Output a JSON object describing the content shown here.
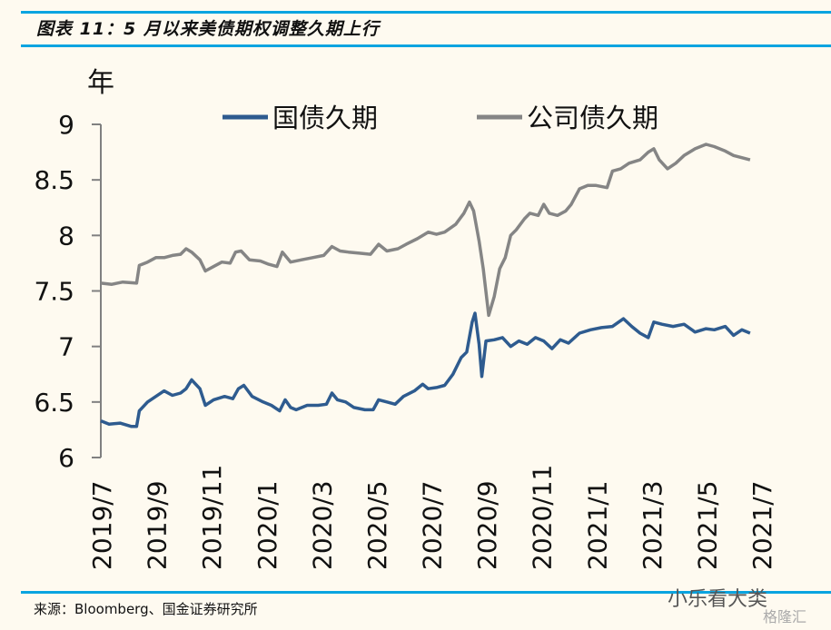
{
  "header": {
    "title": "图表 11：5 月以来美债期权调整久期上行"
  },
  "footer": {
    "source": "来源：Bloomberg、国金证券研究所",
    "watermark": "小乐看大类",
    "watermark2": "格隆汇"
  },
  "chart_data": {
    "type": "line",
    "title": "图表 11：5 月以来美债期权调整久期上行",
    "ylabel": "年",
    "xlabel": "",
    "ylim": [
      6,
      9
    ],
    "yticks": [
      "6",
      "6.5",
      "7",
      "7.5",
      "8",
      "8.5",
      "9"
    ],
    "ytick_values": [
      6,
      6.5,
      7,
      7.5,
      8,
      8.5,
      9
    ],
    "xticks": [
      "2019/7",
      "2019/9",
      "2019/11",
      "2020/1",
      "2020/3",
      "2020/5",
      "2020/7",
      "2020/9",
      "2020/11",
      "2021/1",
      "2021/3",
      "2021/5",
      "2021/7"
    ],
    "x_unit": "months since 2019/7",
    "xlim": [
      0,
      24
    ],
    "grid": false,
    "legend": {
      "position": "top",
      "entries": [
        "国债久期",
        "公司债久期"
      ]
    },
    "series": [
      {
        "name": "国债久期",
        "color": "#2e5b8f",
        "points": [
          [
            0,
            6.33
          ],
          [
            0.3,
            6.3
          ],
          [
            0.7,
            6.31
          ],
          [
            1.1,
            6.28
          ],
          [
            1.3,
            6.28
          ],
          [
            1.4,
            6.42
          ],
          [
            1.7,
            6.5
          ],
          [
            2.0,
            6.55
          ],
          [
            2.3,
            6.6
          ],
          [
            2.6,
            6.56
          ],
          [
            2.9,
            6.58
          ],
          [
            3.1,
            6.62
          ],
          [
            3.3,
            6.7
          ],
          [
            3.6,
            6.62
          ],
          [
            3.8,
            6.47
          ],
          [
            4.1,
            6.52
          ],
          [
            4.5,
            6.55
          ],
          [
            4.8,
            6.53
          ],
          [
            5.0,
            6.62
          ],
          [
            5.2,
            6.65
          ],
          [
            5.5,
            6.55
          ],
          [
            5.9,
            6.5
          ],
          [
            6.2,
            6.47
          ],
          [
            6.5,
            6.42
          ],
          [
            6.7,
            6.52
          ],
          [
            6.9,
            6.45
          ],
          [
            7.1,
            6.43
          ],
          [
            7.5,
            6.47
          ],
          [
            7.9,
            6.47
          ],
          [
            8.2,
            6.48
          ],
          [
            8.4,
            6.58
          ],
          [
            8.6,
            6.52
          ],
          [
            8.9,
            6.5
          ],
          [
            9.2,
            6.45
          ],
          [
            9.6,
            6.43
          ],
          [
            9.9,
            6.43
          ],
          [
            10.1,
            6.52
          ],
          [
            10.4,
            6.5
          ],
          [
            10.7,
            6.48
          ],
          [
            11.0,
            6.55
          ],
          [
            11.4,
            6.6
          ],
          [
            11.7,
            6.66
          ],
          [
            11.9,
            6.62
          ],
          [
            12.2,
            6.63
          ],
          [
            12.5,
            6.65
          ],
          [
            12.8,
            6.75
          ],
          [
            13.1,
            6.9
          ],
          [
            13.3,
            6.95
          ],
          [
            13.5,
            7.22
          ],
          [
            13.6,
            7.3
          ],
          [
            13.75,
            7.02
          ],
          [
            13.85,
            6.73
          ],
          [
            14.0,
            7.05
          ],
          [
            14.3,
            7.06
          ],
          [
            14.6,
            7.08
          ],
          [
            14.9,
            7.0
          ],
          [
            15.2,
            7.05
          ],
          [
            15.5,
            7.02
          ],
          [
            15.8,
            7.08
          ],
          [
            16.1,
            7.05
          ],
          [
            16.4,
            6.98
          ],
          [
            16.7,
            7.06
          ],
          [
            17.0,
            7.03
          ],
          [
            17.4,
            7.12
          ],
          [
            17.8,
            7.15
          ],
          [
            18.2,
            7.17
          ],
          [
            18.6,
            7.18
          ],
          [
            19.0,
            7.25
          ],
          [
            19.3,
            7.18
          ],
          [
            19.6,
            7.12
          ],
          [
            19.9,
            7.08
          ],
          [
            20.1,
            7.22
          ],
          [
            20.4,
            7.2
          ],
          [
            20.8,
            7.18
          ],
          [
            21.2,
            7.2
          ],
          [
            21.6,
            7.13
          ],
          [
            22.0,
            7.16
          ],
          [
            22.3,
            7.15
          ],
          [
            22.7,
            7.18
          ],
          [
            23.0,
            7.1
          ],
          [
            23.3,
            7.15
          ],
          [
            23.6,
            7.12
          ]
        ]
      },
      {
        "name": "公司债久期",
        "color": "#858585",
        "points": [
          [
            0,
            7.57
          ],
          [
            0.4,
            7.56
          ],
          [
            0.8,
            7.58
          ],
          [
            1.3,
            7.57
          ],
          [
            1.4,
            7.73
          ],
          [
            1.7,
            7.76
          ],
          [
            2.0,
            7.8
          ],
          [
            2.3,
            7.8
          ],
          [
            2.6,
            7.82
          ],
          [
            2.9,
            7.83
          ],
          [
            3.1,
            7.88
          ],
          [
            3.3,
            7.85
          ],
          [
            3.6,
            7.78
          ],
          [
            3.8,
            7.68
          ],
          [
            4.1,
            7.72
          ],
          [
            4.4,
            7.76
          ],
          [
            4.7,
            7.75
          ],
          [
            4.9,
            7.85
          ],
          [
            5.1,
            7.86
          ],
          [
            5.4,
            7.78
          ],
          [
            5.8,
            7.77
          ],
          [
            6.1,
            7.74
          ],
          [
            6.4,
            7.72
          ],
          [
            6.6,
            7.85
          ],
          [
            6.9,
            7.76
          ],
          [
            7.3,
            7.78
          ],
          [
            7.7,
            7.8
          ],
          [
            8.1,
            7.82
          ],
          [
            8.4,
            7.9
          ],
          [
            8.7,
            7.86
          ],
          [
            9.0,
            7.85
          ],
          [
            9.4,
            7.84
          ],
          [
            9.8,
            7.83
          ],
          [
            10.1,
            7.92
          ],
          [
            10.4,
            7.86
          ],
          [
            10.8,
            7.88
          ],
          [
            11.1,
            7.92
          ],
          [
            11.5,
            7.97
          ],
          [
            11.9,
            8.03
          ],
          [
            12.2,
            8.01
          ],
          [
            12.5,
            8.03
          ],
          [
            12.9,
            8.1
          ],
          [
            13.2,
            8.2
          ],
          [
            13.4,
            8.3
          ],
          [
            13.55,
            8.22
          ],
          [
            13.75,
            7.95
          ],
          [
            13.9,
            7.7
          ],
          [
            14.1,
            7.28
          ],
          [
            14.3,
            7.45
          ],
          [
            14.5,
            7.7
          ],
          [
            14.7,
            7.8
          ],
          [
            14.9,
            8.0
          ],
          [
            15.1,
            8.05
          ],
          [
            15.4,
            8.15
          ],
          [
            15.6,
            8.2
          ],
          [
            15.9,
            8.18
          ],
          [
            16.1,
            8.28
          ],
          [
            16.3,
            8.2
          ],
          [
            16.6,
            8.18
          ],
          [
            16.9,
            8.22
          ],
          [
            17.1,
            8.28
          ],
          [
            17.4,
            8.42
          ],
          [
            17.7,
            8.45
          ],
          [
            18.0,
            8.45
          ],
          [
            18.4,
            8.43
          ],
          [
            18.6,
            8.58
          ],
          [
            18.9,
            8.6
          ],
          [
            19.2,
            8.65
          ],
          [
            19.6,
            8.68
          ],
          [
            19.9,
            8.75
          ],
          [
            20.1,
            8.78
          ],
          [
            20.3,
            8.68
          ],
          [
            20.6,
            8.6
          ],
          [
            20.9,
            8.65
          ],
          [
            21.2,
            8.72
          ],
          [
            21.6,
            8.78
          ],
          [
            22.0,
            8.82
          ],
          [
            22.3,
            8.8
          ],
          [
            22.7,
            8.76
          ],
          [
            23.0,
            8.72
          ],
          [
            23.3,
            8.7
          ],
          [
            23.6,
            8.68
          ]
        ]
      }
    ]
  }
}
